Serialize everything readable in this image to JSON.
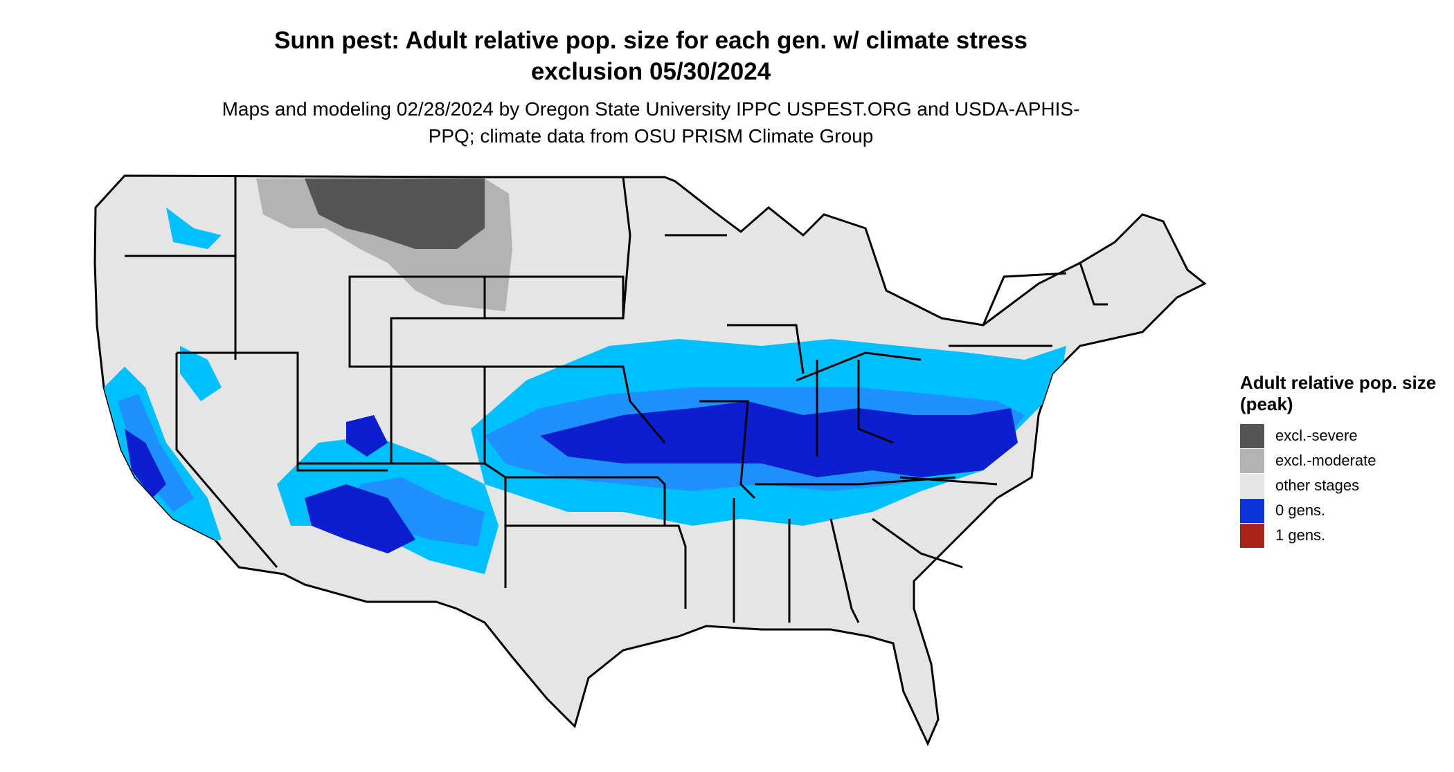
{
  "title": "Sunn pest: Adult relative pop. size for each gen. w/ climate stress exclusion 05/30/2024",
  "subtitle": "Maps and modeling 02/28/2024 by Oregon State University IPPC USPEST.ORG and USDA-APHIS-PPQ; climate data from OSU PRISM Climate Group",
  "legend": {
    "title": "Adult relative pop. size (peak)",
    "items": [
      {
        "label": "excl.-severe",
        "color": "#555555"
      },
      {
        "label": "excl.-moderate",
        "color": "#b3b3b3"
      },
      {
        "label": "other stages",
        "color": "#e6e6e6"
      },
      {
        "label": "0 gens.",
        "color": "#0b35d8"
      },
      {
        "label": "1 gens.",
        "color": "#a8231a"
      }
    ]
  },
  "colors": {
    "land": "#e5e5e5",
    "border": "#000000",
    "light_blue": "#00bfff",
    "mid_blue": "#1e90ff",
    "dark_blue": "#0b1fd0"
  }
}
